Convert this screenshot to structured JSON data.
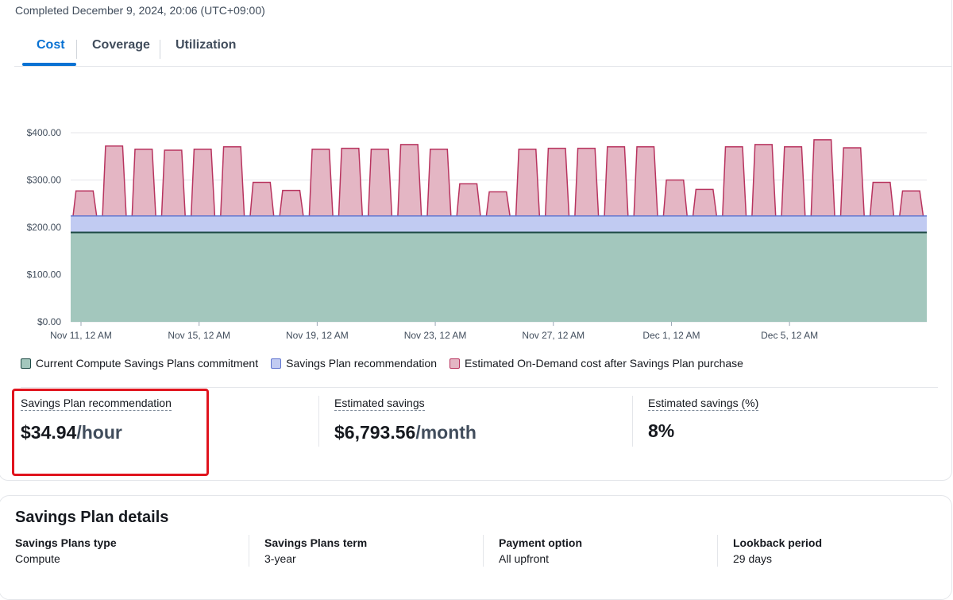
{
  "status": {
    "completed": "Completed December 9, 2024, 20:06 (UTC+09:00)"
  },
  "tabs": [
    {
      "label": "Cost",
      "active": true
    },
    {
      "label": "Coverage",
      "active": false
    },
    {
      "label": "Utilization",
      "active": false
    }
  ],
  "chart_data": {
    "type": "area",
    "y_ticks": [
      "$400.00",
      "$300.00",
      "$200.00",
      "$100.00",
      "$0.00"
    ],
    "ylim": [
      0,
      400
    ],
    "x_ticks": [
      "Nov 11, 12 AM",
      "Nov 15, 12 AM",
      "Nov 19, 12 AM",
      "Nov 23, 12 AM",
      "Nov 27, 12 AM",
      "Dec 1, 12 AM",
      "Dec 5, 12 AM"
    ],
    "days": 29,
    "grid": true,
    "series": [
      {
        "name": "Current Compute Savings Plans commitment",
        "color": "#a3c7bd",
        "line": "#1d4a45",
        "constant": 189
      },
      {
        "name": "Savings Plan recommendation",
        "color": "#c1cbf2",
        "line": "#5f74cf",
        "constant": 224
      },
      {
        "name": "Estimated On-Demand cost after Savings Plan purchase",
        "color": "#e4b6c4",
        "line": "#b8345f",
        "daily_peak": [
          277,
          372,
          365,
          363,
          365,
          370,
          295,
          278,
          365,
          367,
          365,
          375,
          365,
          292,
          275,
          365,
          367,
          367,
          370,
          370,
          300,
          280,
          370,
          375,
          370,
          385,
          368,
          295,
          277
        ]
      }
    ]
  },
  "metrics": [
    {
      "label": "Savings Plan recommendation",
      "value": "$34.94",
      "unit": "/hour"
    },
    {
      "label": "Estimated savings",
      "value": "$6,793.56",
      "unit": "/month"
    },
    {
      "label": "Estimated savings (%)",
      "value": "8%",
      "unit": ""
    }
  ],
  "details": {
    "title": "Savings Plan details",
    "items": [
      {
        "label": "Savings Plans type",
        "value": "Compute"
      },
      {
        "label": "Savings Plans term",
        "value": "3-year"
      },
      {
        "label": "Payment option",
        "value": "All upfront"
      },
      {
        "label": "Lookback period",
        "value": "29 days"
      }
    ]
  }
}
